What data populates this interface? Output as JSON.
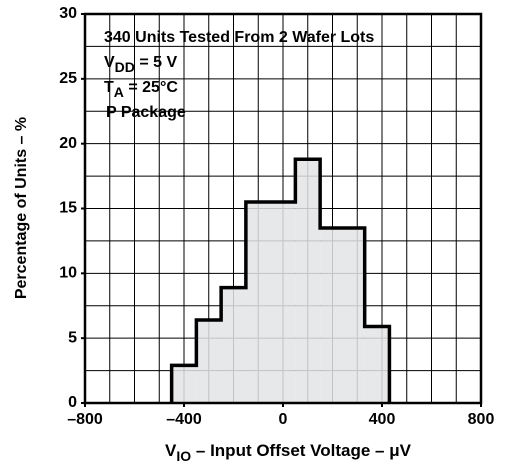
{
  "chart_data": {
    "type": "histogram",
    "annotations": [
      {
        "text": "340 Units Tested From 2 Wafer Lots"
      },
      {
        "text": "V",
        "sub": "DD",
        "rest": " = 5 V"
      },
      {
        "text": "T",
        "sub": "A",
        "rest": " = 25°C"
      },
      {
        "text": "P Package"
      }
    ],
    "xlabel": {
      "text": "V",
      "sub": "IO",
      "rest": " – Input Offset Voltage – μV"
    },
    "ylabel": "Percentage of Units – %",
    "bins": [
      -450,
      -350,
      -250,
      -150,
      50,
      150,
      330,
      430
    ],
    "values": [
      2.9,
      6.4,
      8.9,
      15.5,
      18.8,
      13.5,
      5.9
    ],
    "color": "#e2e4e6",
    "xlim": [
      -800,
      800
    ],
    "ylim": [
      0,
      30
    ],
    "xticks": [
      {
        "value": -800,
        "label": "–800"
      },
      {
        "value": -400,
        "label": "–400"
      },
      0,
      400,
      800
    ],
    "yticks": [
      0,
      5,
      10,
      15,
      20,
      25,
      30
    ],
    "xgrid": [
      -700,
      -600,
      -500,
      -400,
      -300,
      -200,
      -100,
      0,
      100,
      200,
      300,
      400,
      500,
      600,
      700
    ],
    "ygrid": [
      2.5,
      5,
      7.5,
      10,
      12.5,
      15,
      17.5,
      20,
      22.5,
      25,
      27.5
    ],
    "grid": true
  }
}
